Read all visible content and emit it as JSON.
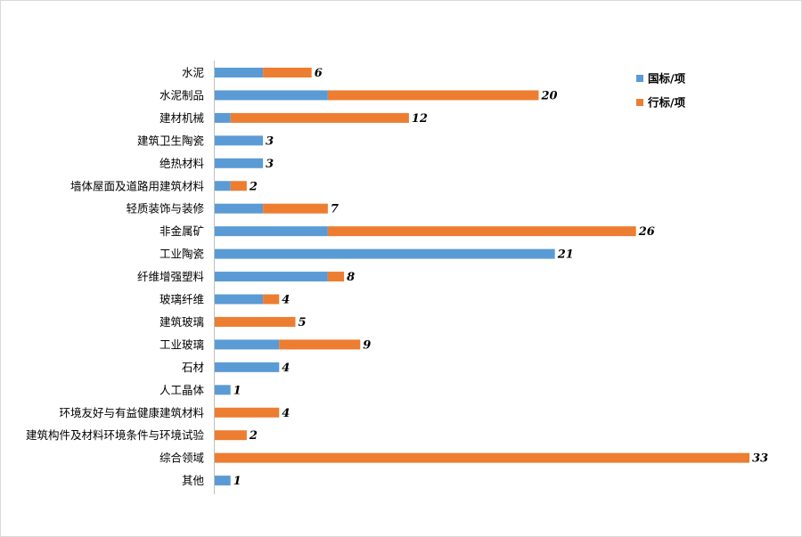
{
  "chart_data": {
    "type": "bar",
    "orientation": "horizontal",
    "stacked": true,
    "categories": [
      "水泥",
      "水泥制品",
      "建材机械",
      "建筑卫生陶瓷",
      "绝热材料",
      "墙体屋面及道路用建筑材料",
      "轻质装饰与装修",
      "非金属矿",
      "工业陶瓷",
      "纤维增强塑料",
      "玻璃纤维",
      "建筑玻璃",
      "工业玻璃",
      "石材",
      "人工晶体",
      "环境友好与有益健康建筑材料",
      "建筑构件及材料环境条件与环境试验",
      "综合领域",
      "其他"
    ],
    "series": [
      {
        "name": "国标/项",
        "color": "#5b9bd5",
        "values": [
          3,
          7,
          1,
          3,
          3,
          1,
          3,
          7,
          21,
          7,
          3,
          0,
          4,
          4,
          1,
          0,
          0,
          0,
          1
        ]
      },
      {
        "name": "行标/项",
        "color": "#ed7d31",
        "values": [
          3,
          13,
          11,
          0,
          0,
          1,
          4,
          19,
          0,
          1,
          1,
          5,
          5,
          0,
          0,
          4,
          2,
          33,
          0
        ]
      }
    ],
    "totals": [
      "6",
      "20",
      "12",
      "3",
      "3",
      "2",
      "7",
      "26",
      "21",
      "8",
      "4",
      "5",
      "9",
      "4",
      "1",
      "4",
      "2",
      "33",
      "1"
    ],
    "xlim": [
      0,
      33
    ],
    "grid": false,
    "legend": "top-right"
  }
}
